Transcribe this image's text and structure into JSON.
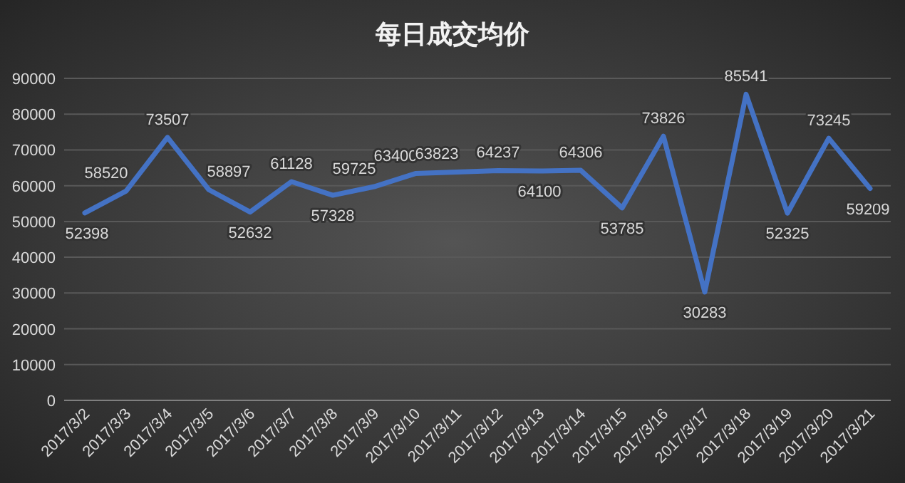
{
  "chart_data": {
    "type": "line",
    "title": "每日成交均价",
    "categories": [
      "2017/3/2",
      "2017/3/3",
      "2017/3/4",
      "2017/3/5",
      "2017/3/6",
      "2017/3/7",
      "2017/3/8",
      "2017/3/9",
      "2017/3/10",
      "2017/3/11",
      "2017/3/12",
      "2017/3/13",
      "2017/3/14",
      "2017/3/15",
      "2017/3/16",
      "2017/3/17",
      "2017/3/18",
      "2017/3/19",
      "2017/3/20",
      "2017/3/21"
    ],
    "values": [
      52398,
      58520,
      73507,
      58897,
      52632,
      61128,
      57328,
      59725,
      63400,
      63823,
      64237,
      64100,
      64306,
      53785,
      73826,
      30283,
      85541,
      52325,
      73245,
      59209
    ],
    "color": "#4472c4",
    "ylim": [
      0,
      90000
    ],
    "yticks": [
      0,
      10000,
      20000,
      30000,
      40000,
      50000,
      60000,
      70000,
      80000,
      90000
    ],
    "grid": "y",
    "data_labels": true
  }
}
